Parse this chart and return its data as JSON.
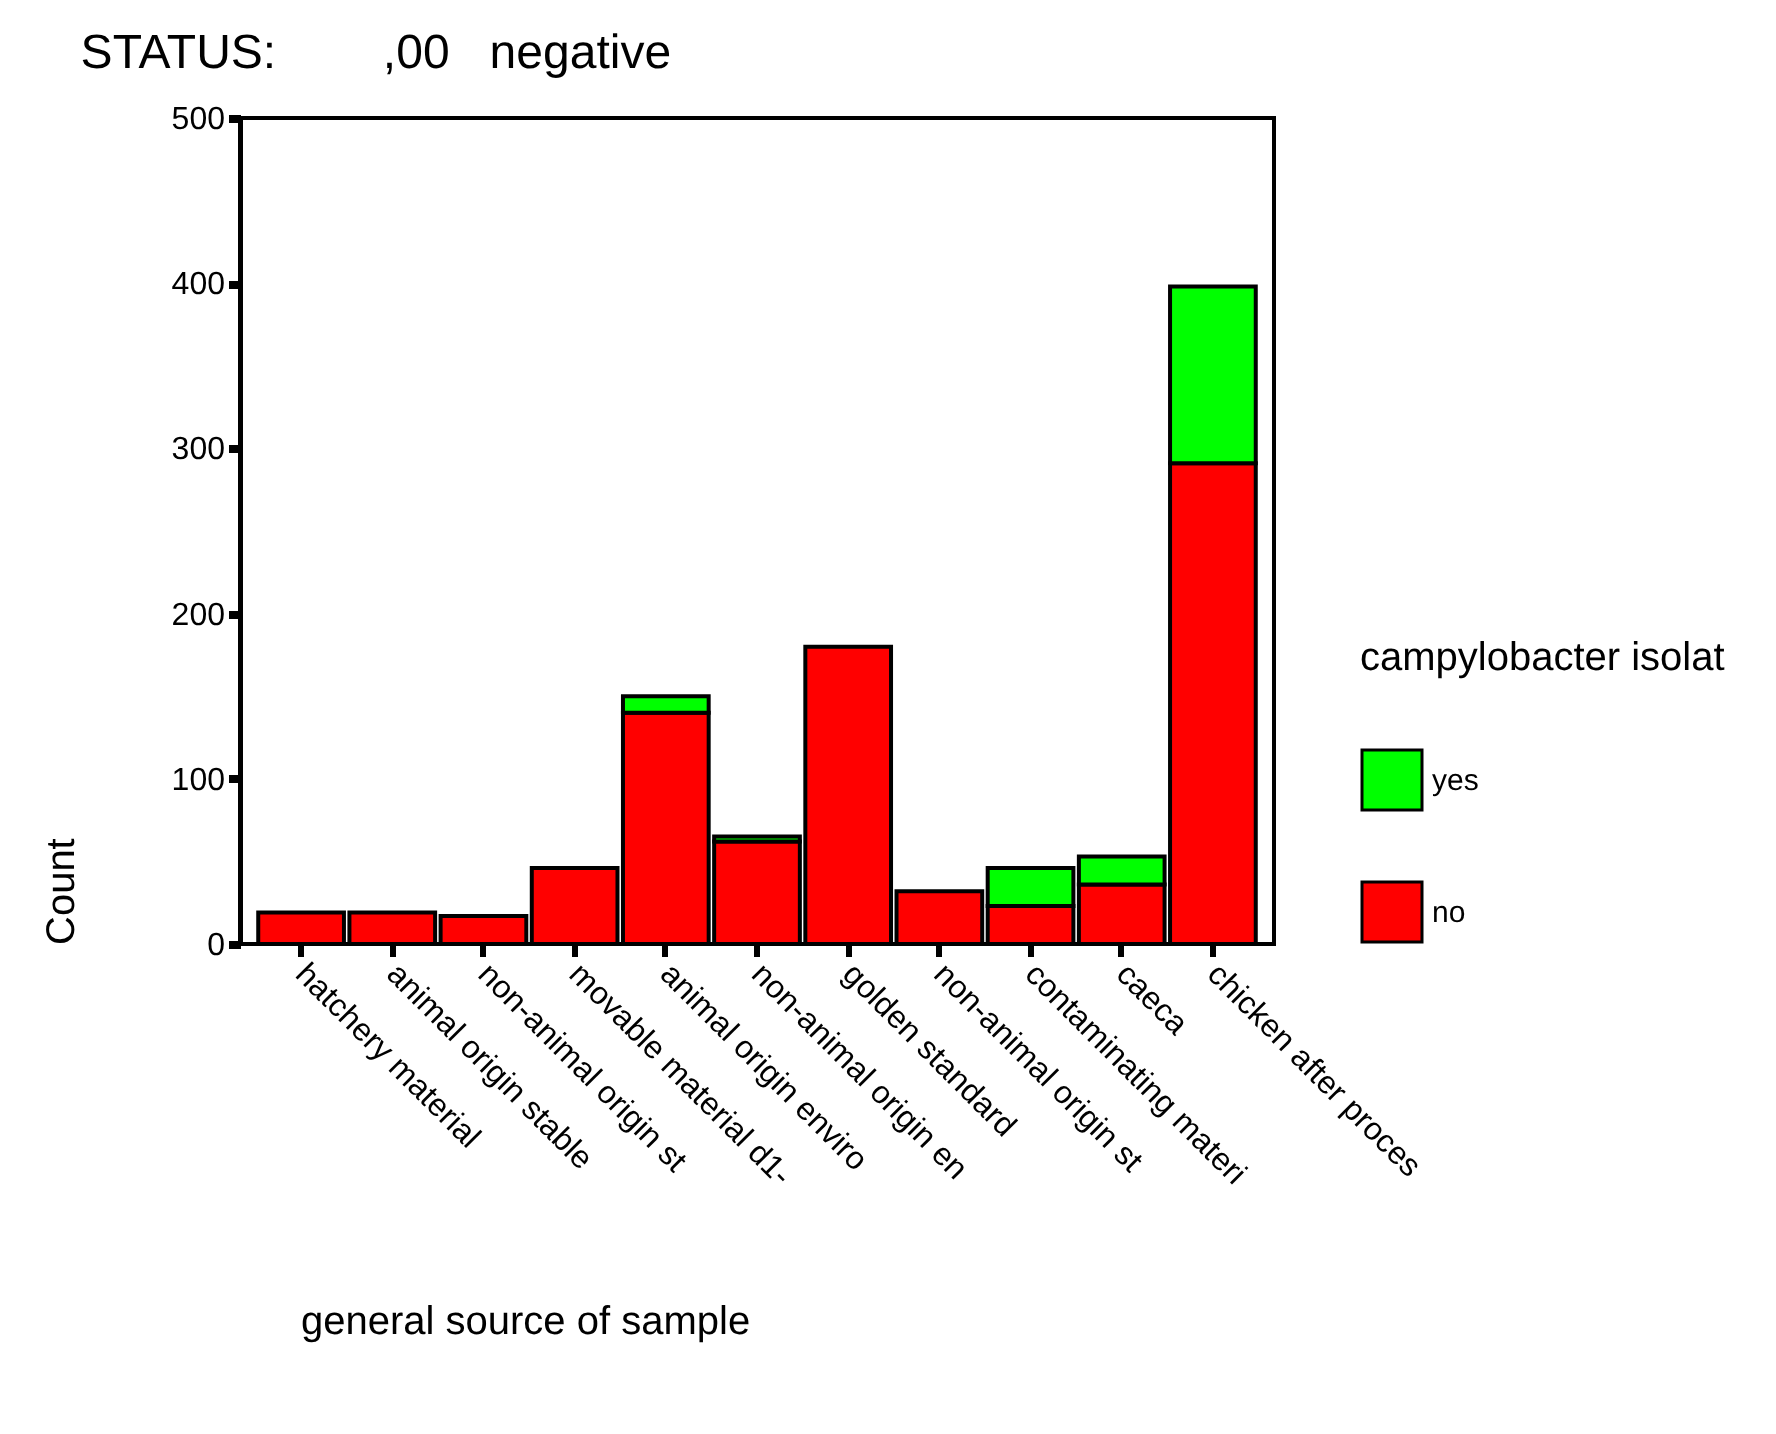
{
  "chart_data": {
    "type": "bar",
    "title": "STATUS:        ,00   negative",
    "xlabel": "general source of sample",
    "ylabel": "Count",
    "legend_title": "campylobacter isolat",
    "categories": [
      "hatchery material",
      "animal origin stable",
      "non-animal origin st",
      "movable material d1-",
      "animal origin enviro",
      "non-animal origin en",
      "golden standard",
      "non-animal origin st",
      "contaminating materi",
      "caeca",
      "chicken after proces"
    ],
    "stacked": true,
    "series": [
      {
        "name": "no",
        "color": "#ff0000",
        "values": [
          19,
          19,
          17,
          46,
          140,
          62,
          180,
          32,
          23,
          36,
          291
        ]
      },
      {
        "name": "yes",
        "color": "#00ff00",
        "values": [
          0,
          0,
          0,
          0,
          10,
          3,
          0,
          0,
          23,
          17,
          107
        ]
      }
    ],
    "ylim": [
      0,
      500
    ],
    "yticks": [
      0,
      100,
      200,
      300,
      400,
      500
    ],
    "grid": false,
    "legend": "right"
  }
}
